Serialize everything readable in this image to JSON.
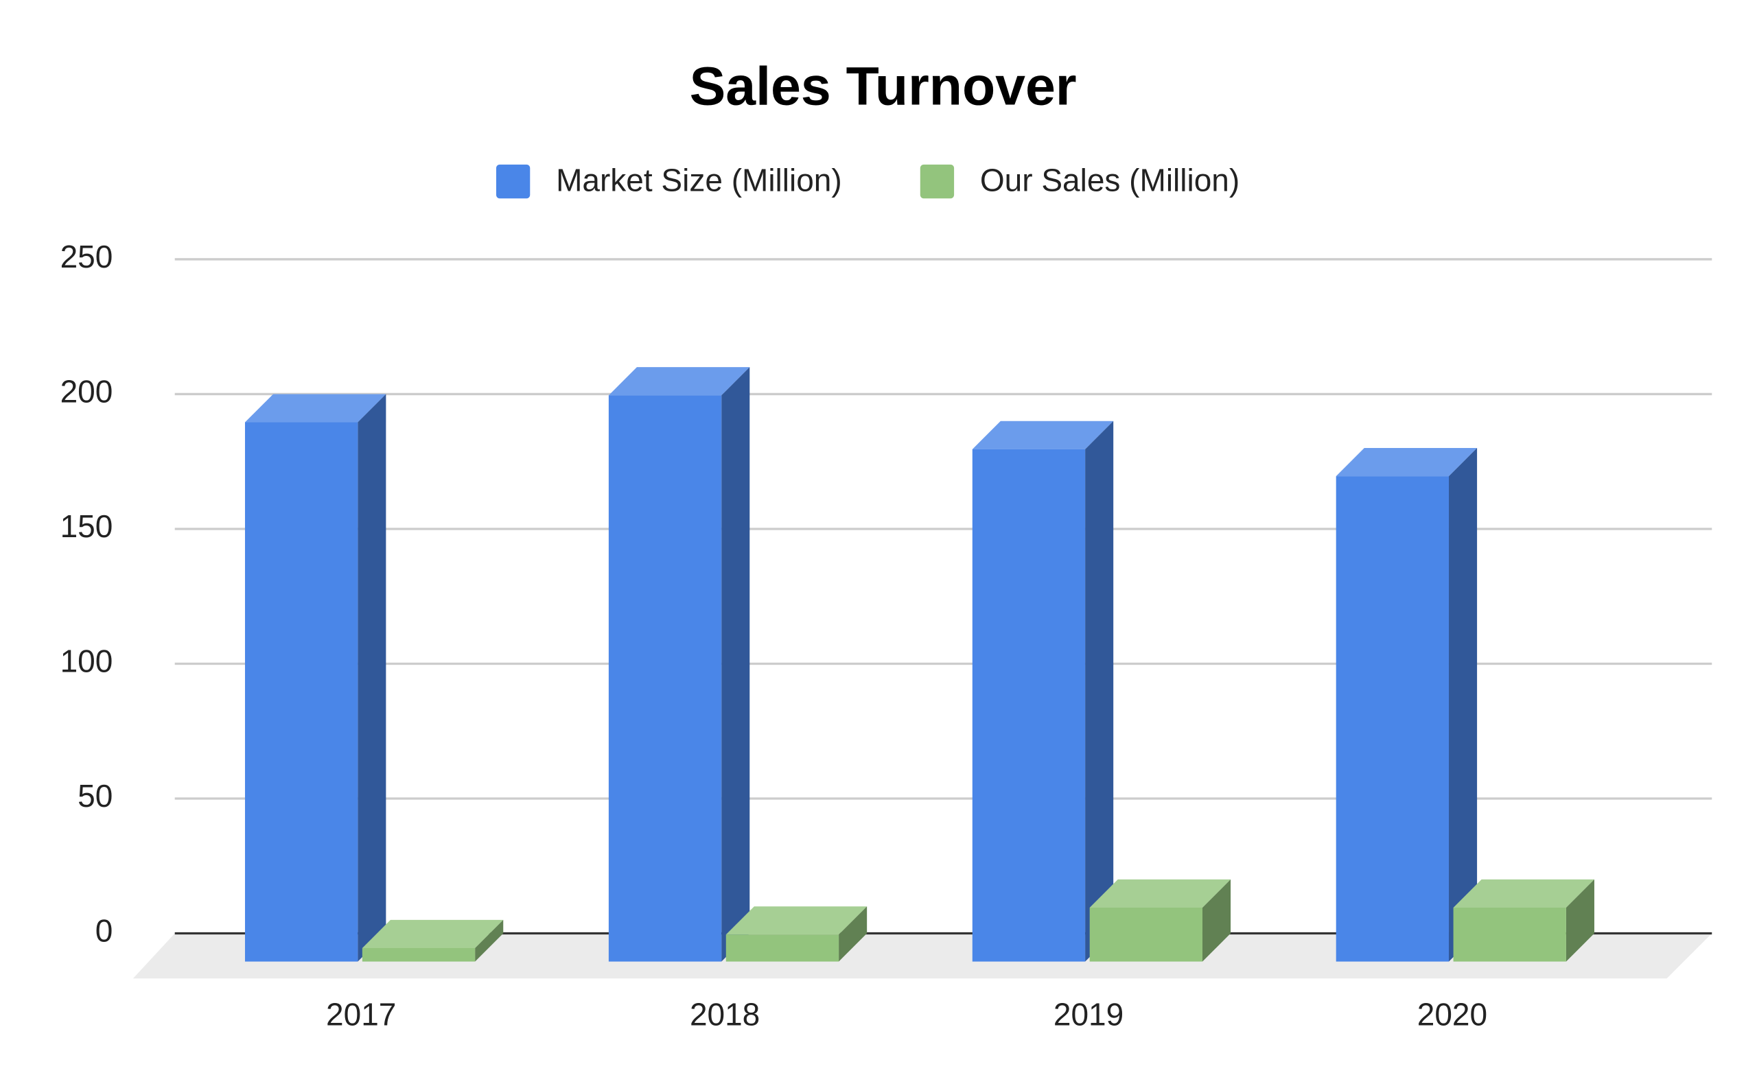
{
  "chart_data": {
    "type": "bar3d",
    "title": "Sales Turnover",
    "categories": [
      "2017",
      "2018",
      "2019",
      "2020"
    ],
    "series": [
      {
        "name": "Market Size (Million)",
        "color": "#4a86e8",
        "values": [
          200,
          210,
          190,
          180
        ]
      },
      {
        "name": "Our Sales (Million)",
        "color": "#93c47d",
        "values": [
          5,
          10,
          20,
          20
        ]
      }
    ],
    "ylim": [
      0,
      250
    ],
    "yticks": [
      0,
      50,
      100,
      150,
      200,
      250
    ],
    "grid": true,
    "legend": "top"
  }
}
